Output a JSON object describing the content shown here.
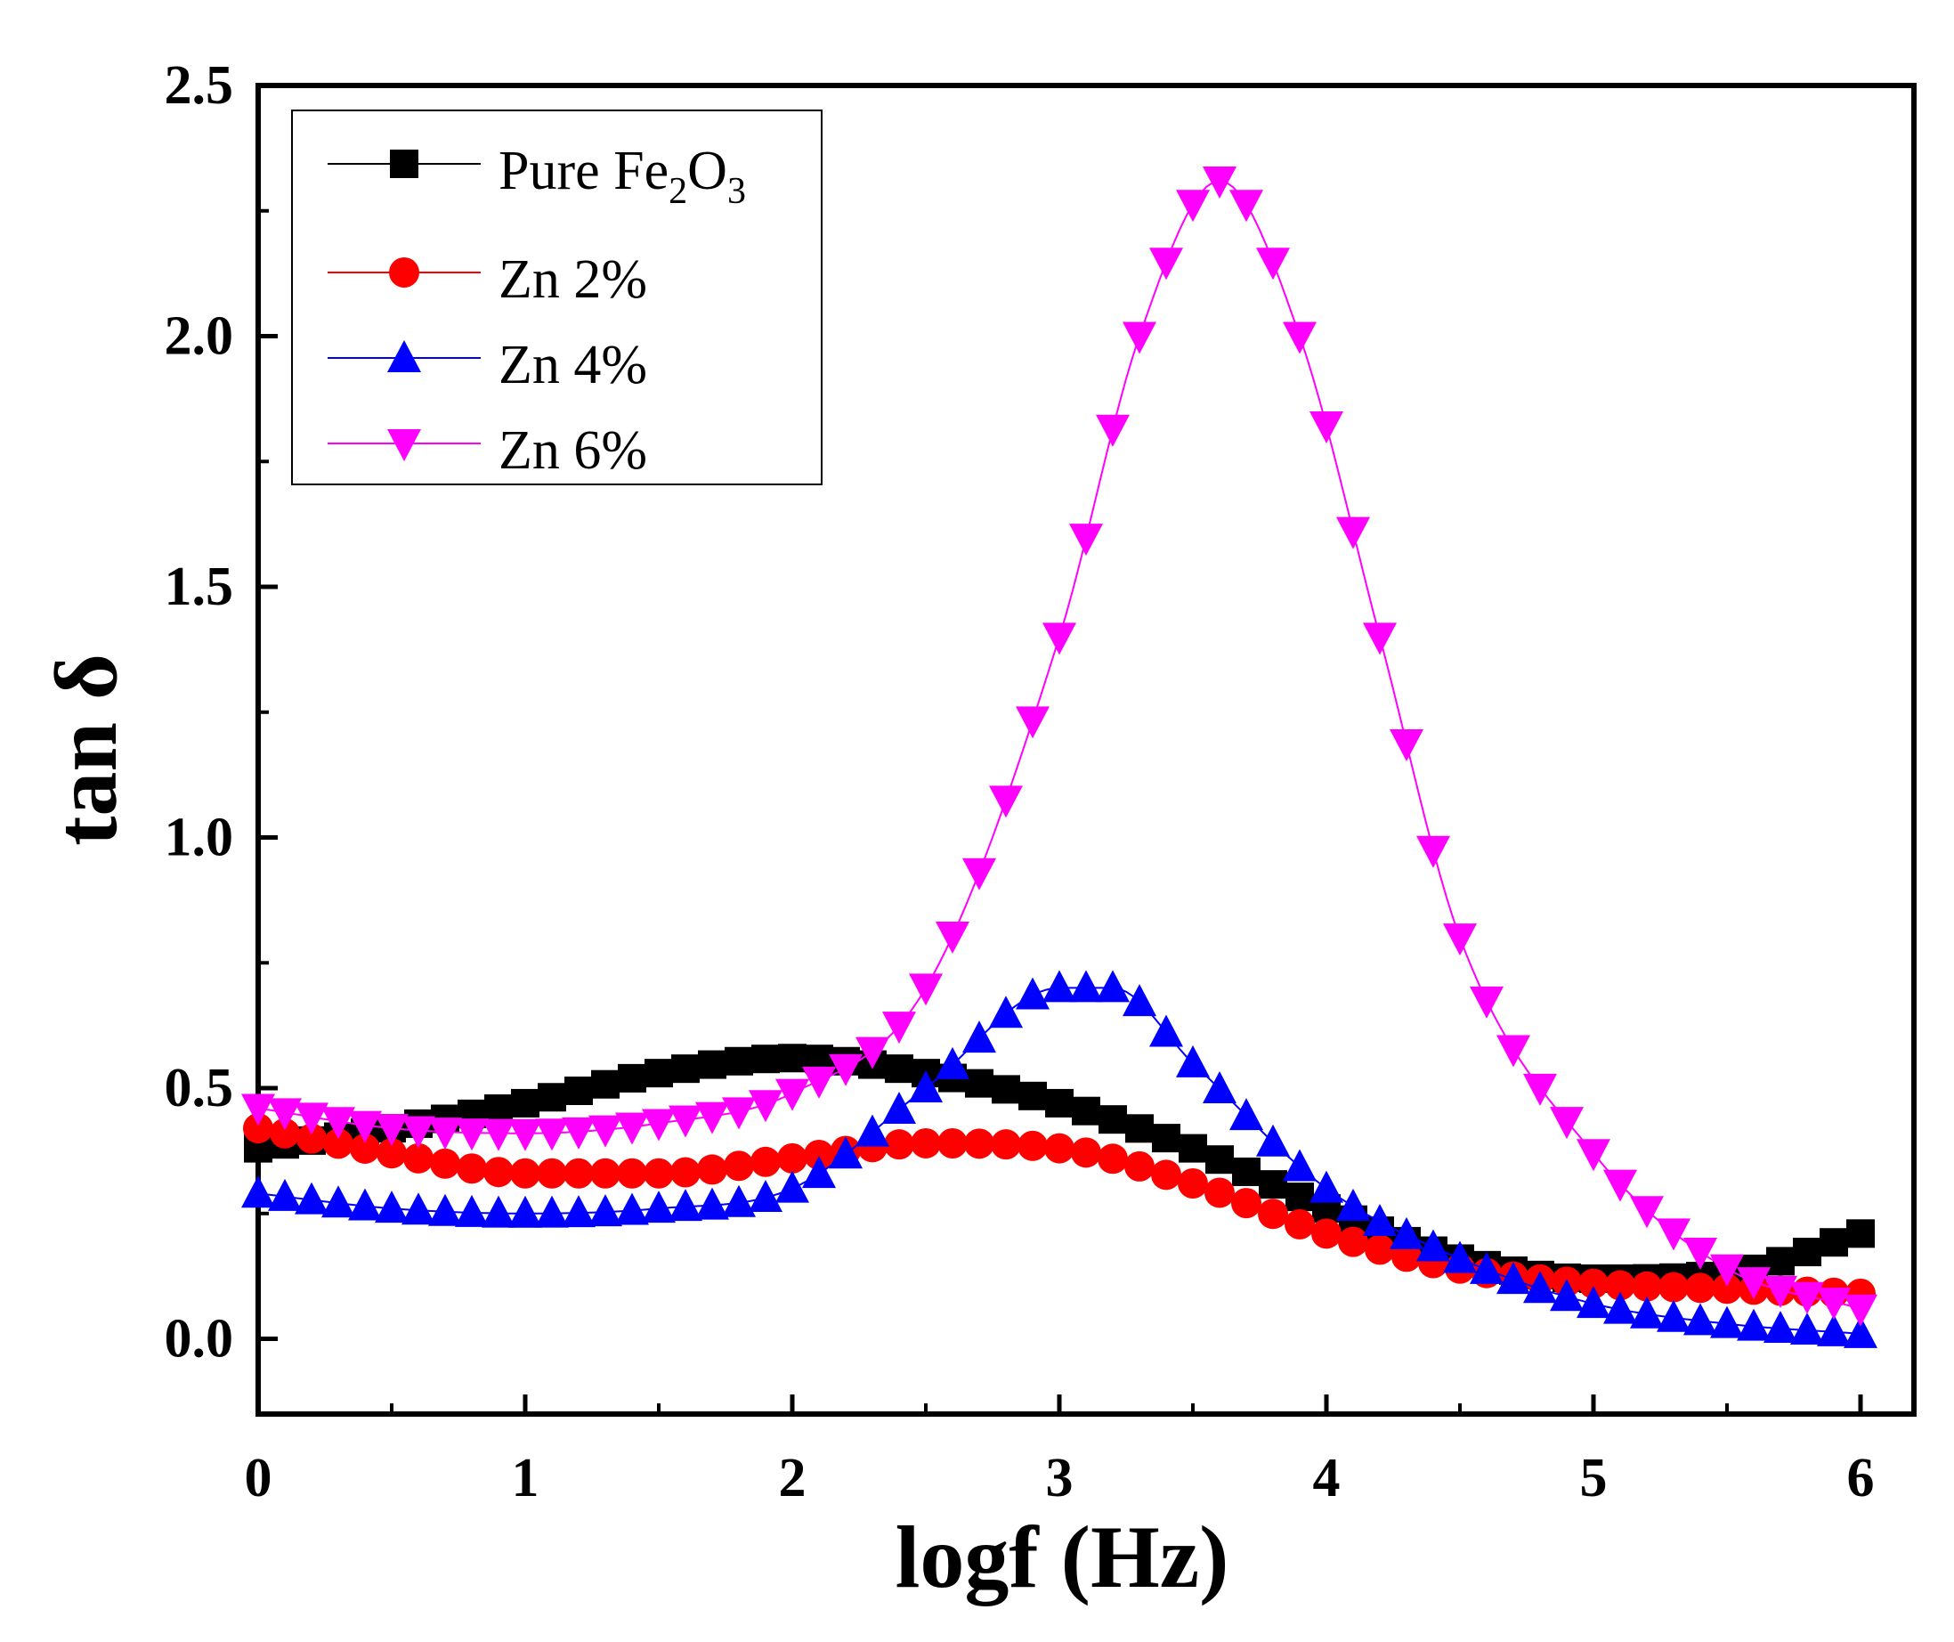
{
  "chart_data": {
    "type": "scatter",
    "title": "",
    "xlabel": "logf (Hz)",
    "ylabel": "tan δ",
    "xlim": [
      0,
      6.2
    ],
    "ylim": [
      -0.15,
      2.5
    ],
    "x_ticks": [
      "0",
      "1",
      "2",
      "3",
      "4",
      "5",
      "6"
    ],
    "y_ticks": [
      "0.0",
      "0.5",
      "1.0",
      "1.5",
      "2.0",
      "2.5"
    ],
    "legend_position": "top-left",
    "legend": {
      "pure_prefix": "Pure Fe",
      "pure_sub1": "2",
      "pure_mid": "O",
      "pure_sub2": "3",
      "zn2": "Zn 2%",
      "zn4": "Zn 4%",
      "zn6": "Zn 6%"
    },
    "series": [
      {
        "name": "Pure Fe2O3",
        "color": "#000000",
        "marker": "square",
        "points": [
          [
            0,
            0.38
          ],
          [
            0.5,
            0.42
          ],
          [
            1.0,
            0.47
          ],
          [
            1.5,
            0.53
          ],
          [
            2.0,
            0.56
          ],
          [
            2.5,
            0.53
          ],
          [
            3.0,
            0.47
          ],
          [
            3.5,
            0.38
          ],
          [
            4.0,
            0.26
          ],
          [
            4.5,
            0.16
          ],
          [
            5.0,
            0.12
          ],
          [
            5.5,
            0.13
          ],
          [
            6.0,
            0.21
          ]
        ]
      },
      {
        "name": "Zn 2%",
        "color": "#ff0000",
        "marker": "circle",
        "points": [
          [
            0,
            0.42
          ],
          [
            0.5,
            0.37
          ],
          [
            1.0,
            0.33
          ],
          [
            1.5,
            0.33
          ],
          [
            2.0,
            0.36
          ],
          [
            2.5,
            0.39
          ],
          [
            3.0,
            0.38
          ],
          [
            3.5,
            0.31
          ],
          [
            4.0,
            0.21
          ],
          [
            4.5,
            0.14
          ],
          [
            5.0,
            0.11
          ],
          [
            5.5,
            0.1
          ],
          [
            6.0,
            0.09
          ]
        ]
      },
      {
        "name": "Zn 4%",
        "color": "#0000ff",
        "marker": "triangle-up",
        "points": [
          [
            0,
            0.29
          ],
          [
            0.5,
            0.26
          ],
          [
            1.0,
            0.25
          ],
          [
            1.5,
            0.26
          ],
          [
            2.0,
            0.3
          ],
          [
            2.5,
            0.5
          ],
          [
            3.0,
            0.7
          ],
          [
            3.2,
            0.7
          ],
          [
            3.5,
            0.55
          ],
          [
            4.0,
            0.3
          ],
          [
            4.5,
            0.16
          ],
          [
            5.0,
            0.07
          ],
          [
            5.5,
            0.03
          ],
          [
            6.0,
            0.01
          ]
        ]
      },
      {
        "name": "Zn 6%",
        "color": "#ff00ff",
        "marker": "triangle-down",
        "points": [
          [
            0,
            0.46
          ],
          [
            0.5,
            0.42
          ],
          [
            1.0,
            0.41
          ],
          [
            1.5,
            0.43
          ],
          [
            2.0,
            0.49
          ],
          [
            2.5,
            0.7
          ],
          [
            3.0,
            1.4
          ],
          [
            3.3,
            2.0
          ],
          [
            3.6,
            2.31
          ],
          [
            3.9,
            2.0
          ],
          [
            4.2,
            1.4
          ],
          [
            4.5,
            0.8
          ],
          [
            5.0,
            0.37
          ],
          [
            5.5,
            0.14
          ],
          [
            6.0,
            0.06
          ]
        ]
      }
    ]
  }
}
